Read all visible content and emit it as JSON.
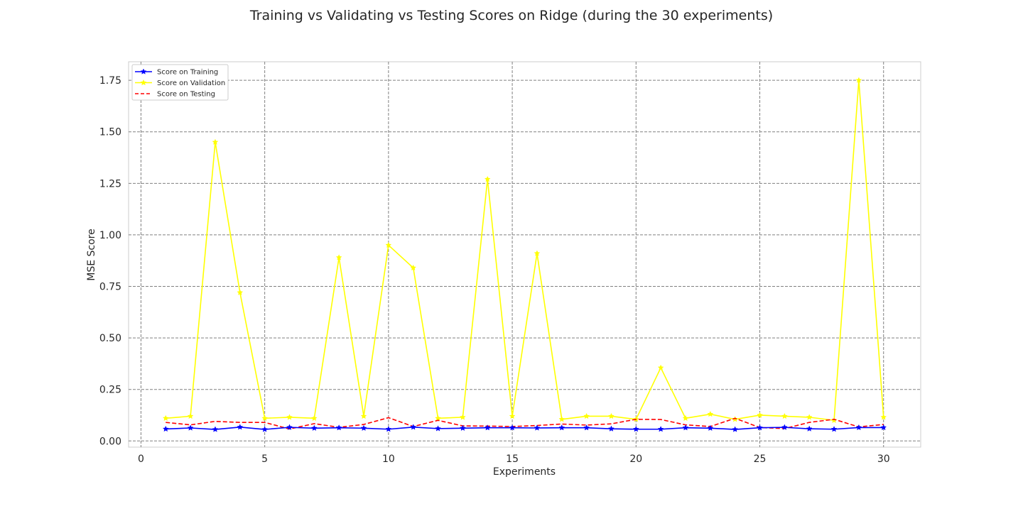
{
  "chart_data": {
    "type": "line",
    "title": "Training vs Validating vs Testing Scores on Ridge (during the 30 experiments)",
    "xlabel": "Experiments",
    "ylabel": "MSE Score",
    "xlim": [
      -0.5,
      31.5
    ],
    "ylim": [
      -0.03,
      1.84
    ],
    "xticks": [
      0,
      5,
      10,
      15,
      20,
      25,
      30
    ],
    "yticks": [
      0.0,
      0.25,
      0.5,
      0.75,
      1.0,
      1.25,
      1.5,
      1.75
    ],
    "ytick_labels": [
      "0.00",
      "0.25",
      "0.50",
      "0.75",
      "1.00",
      "1.25",
      "1.50",
      "1.75"
    ],
    "grid": true,
    "legend_position": "top-left",
    "x": [
      1,
      2,
      3,
      4,
      5,
      6,
      7,
      8,
      9,
      10,
      11,
      12,
      13,
      14,
      15,
      16,
      17,
      18,
      19,
      20,
      21,
      22,
      23,
      24,
      25,
      26,
      27,
      28,
      29,
      30
    ],
    "series": [
      {
        "name": "Score on Training",
        "color": "#0000ff",
        "style": "solid",
        "marker": "star",
        "values": [
          0.058,
          0.063,
          0.056,
          0.067,
          0.056,
          0.066,
          0.062,
          0.064,
          0.062,
          0.057,
          0.067,
          0.06,
          0.062,
          0.064,
          0.064,
          0.063,
          0.064,
          0.064,
          0.059,
          0.057,
          0.057,
          0.064,
          0.062,
          0.056,
          0.064,
          0.066,
          0.059,
          0.057,
          0.065,
          0.065
        ]
      },
      {
        "name": "Score on Validation",
        "color": "#ffff00",
        "style": "solid",
        "marker": "star",
        "values": [
          0.11,
          0.12,
          1.45,
          0.72,
          0.11,
          0.115,
          0.11,
          0.89,
          0.12,
          0.95,
          0.84,
          0.11,
          0.115,
          1.27,
          0.12,
          0.91,
          0.105,
          0.12,
          0.12,
          0.105,
          0.355,
          0.11,
          0.13,
          0.105,
          0.125,
          0.12,
          0.115,
          0.1,
          1.75,
          0.115
        ]
      },
      {
        "name": "Score on Testing",
        "color": "#ff0000",
        "style": "dashed",
        "marker": "none",
        "values": [
          0.09,
          0.078,
          0.095,
          0.09,
          0.09,
          0.058,
          0.084,
          0.066,
          0.08,
          0.113,
          0.07,
          0.1,
          0.073,
          0.072,
          0.07,
          0.075,
          0.082,
          0.077,
          0.083,
          0.105,
          0.104,
          0.078,
          0.07,
          0.11,
          0.065,
          0.06,
          0.09,
          0.105,
          0.068,
          0.08
        ]
      }
    ]
  }
}
